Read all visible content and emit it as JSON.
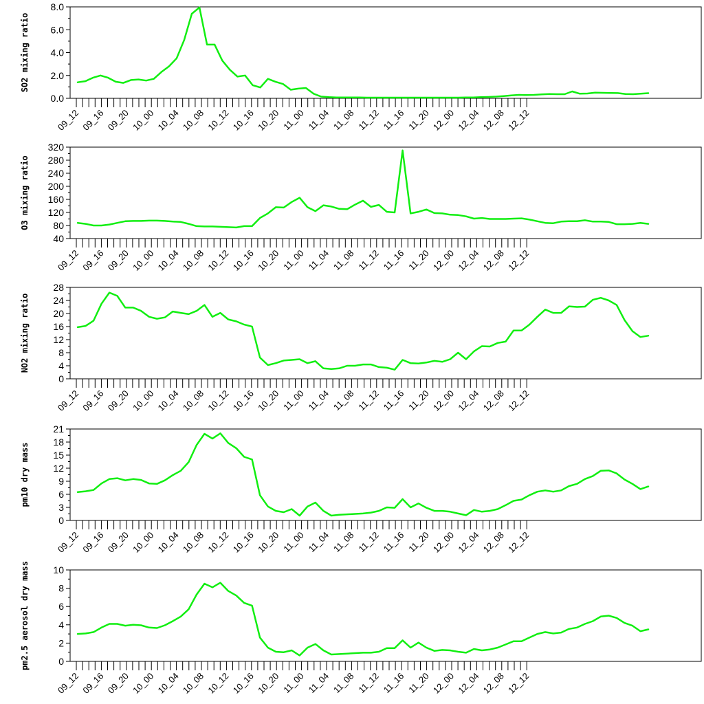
{
  "chart_data": [
    {
      "type": "line",
      "title": "",
      "xlabel": "",
      "ylabel": "SO2 mixing ratio",
      "ylim": [
        0,
        8
      ],
      "yticks": [
        "0.0",
        "2.0",
        "4.0",
        "6.0",
        "8.0"
      ],
      "xtick_labels": [
        "09_12",
        "09_16",
        "09_20",
        "10_00",
        "10_04",
        "10_08",
        "10_12",
        "10_16",
        "10_20",
        "11_00",
        "11_04",
        "11_08",
        "11_12",
        "11_16",
        "11_20",
        "12_00",
        "12_04",
        "12_08",
        "12_12"
      ],
      "line_color": "#11ee11",
      "grid": false,
      "values": [
        1.4,
        1.5,
        1.8,
        2.0,
        1.8,
        1.45,
        1.35,
        1.6,
        1.65,
        1.55,
        1.7,
        2.3,
        2.8,
        3.5,
        5.1,
        7.4,
        7.95,
        4.7,
        4.7,
        3.3,
        2.5,
        1.9,
        2.0,
        1.15,
        0.95,
        1.7,
        1.45,
        1.25,
        0.75,
        0.85,
        0.9,
        0.4,
        0.15,
        0.1,
        0.08,
        0.08,
        0.07,
        0.07,
        0.06,
        0.06,
        0.06,
        0.06,
        0.06,
        0.06,
        0.06,
        0.06,
        0.06,
        0.06,
        0.06,
        0.06,
        0.06,
        0.07,
        0.08,
        0.1,
        0.12,
        0.15,
        0.2,
        0.25,
        0.3,
        0.28,
        0.3,
        0.35,
        0.38,
        0.36,
        0.36,
        0.6,
        0.4,
        0.42,
        0.5,
        0.48,
        0.47,
        0.46,
        0.38,
        0.36,
        0.4,
        0.45
      ]
    },
    {
      "type": "line",
      "title": "",
      "xlabel": "",
      "ylabel": "O3 mixing ratio",
      "ylim": [
        40,
        320
      ],
      "yticks": [
        "40",
        "80",
        "120",
        "160",
        "200",
        "240",
        "280",
        "320"
      ],
      "xtick_labels": [
        "09_12",
        "09_16",
        "09_20",
        "10_00",
        "10_04",
        "10_08",
        "10_12",
        "10_16",
        "10_20",
        "11_00",
        "11_04",
        "11_08",
        "11_12",
        "11_16",
        "11_20",
        "12_00",
        "12_04",
        "12_08",
        "12_12"
      ],
      "line_color": "#11ee11",
      "grid": false,
      "values": [
        88,
        85,
        80,
        80,
        83,
        88,
        93,
        94,
        94,
        95,
        95,
        94,
        92,
        91,
        85,
        78,
        77,
        77,
        76,
        75,
        74,
        78,
        78,
        103,
        117,
        136,
        135,
        152,
        165,
        136,
        124,
        142,
        138,
        131,
        130,
        144,
        156,
        137,
        143,
        122,
        120,
        310,
        117,
        122,
        129,
        118,
        117,
        113,
        112,
        108,
        101,
        103,
        100,
        100,
        100,
        101,
        102,
        98,
        93,
        88,
        87,
        92,
        93,
        93,
        96,
        92,
        92,
        91,
        84,
        84,
        85,
        88,
        85
      ]
    },
    {
      "type": "line",
      "title": "",
      "xlabel": "",
      "ylabel": "NO2 mixing ratio",
      "ylim": [
        0,
        28
      ],
      "yticks": [
        "0",
        "4",
        "8",
        "12",
        "16",
        "20",
        "24",
        "28"
      ],
      "xtick_labels": [
        "09_12",
        "09_16",
        "09_20",
        "10_00",
        "10_04",
        "10_08",
        "10_12",
        "10_16",
        "10_20",
        "11_00",
        "11_04",
        "11_08",
        "11_12",
        "11_16",
        "11_20",
        "12_00",
        "12_04",
        "12_08",
        "12_12"
      ],
      "line_color": "#11ee11",
      "grid": false,
      "values": [
        15.8,
        16.2,
        17.8,
        23.0,
        26.4,
        25.4,
        21.8,
        21.8,
        20.8,
        19.0,
        18.4,
        18.8,
        20.6,
        20.2,
        19.8,
        20.8,
        22.6,
        19.0,
        20.2,
        18.2,
        17.6,
        16.6,
        16.0,
        6.5,
        4.2,
        4.8,
        5.6,
        5.8,
        6.0,
        4.8,
        5.4,
        3.2,
        3.0,
        3.2,
        4.0,
        4.0,
        4.4,
        4.4,
        3.6,
        3.4,
        2.8,
        5.8,
        4.8,
        4.7,
        5.0,
        5.5,
        5.2,
        6.0,
        8.0,
        6.0,
        8.4,
        10.0,
        9.9,
        11.0,
        11.4,
        14.8,
        14.8,
        16.6,
        19.0,
        21.2,
        20.2,
        20.2,
        22.2,
        22.0,
        22.1,
        24.2,
        24.8,
        24.0,
        22.6,
        18.0,
        14.6,
        12.8,
        13.2
      ]
    },
    {
      "type": "line",
      "title": "",
      "xlabel": "",
      "ylabel": "pm10 dry mass",
      "ylim": [
        0,
        21
      ],
      "yticks": [
        "0",
        "3",
        "6",
        "9",
        "12",
        "15",
        "18",
        "21"
      ],
      "xtick_labels": [
        "09_12",
        "09_16",
        "09_20",
        "10_00",
        "10_04",
        "10_08",
        "10_12",
        "10_16",
        "10_20",
        "11_00",
        "11_04",
        "11_08",
        "11_12",
        "11_16",
        "11_20",
        "12_00",
        "12_04",
        "12_08",
        "12_12"
      ],
      "line_color": "#11ee11",
      "grid": false,
      "values": [
        6.5,
        6.7,
        7.0,
        8.5,
        9.5,
        9.7,
        9.2,
        9.5,
        9.3,
        8.5,
        8.4,
        9.2,
        10.4,
        11.4,
        13.4,
        17.3,
        19.9,
        18.8,
        20.0,
        17.8,
        16.6,
        14.6,
        14.0,
        5.8,
        3.2,
        2.2,
        1.9,
        2.6,
        1.1,
        3.2,
        4.1,
        2.2,
        1.1,
        1.3,
        1.4,
        1.5,
        1.6,
        1.8,
        2.2,
        3.0,
        2.9,
        4.9,
        3.0,
        3.9,
        2.9,
        2.2,
        2.2,
        2.0,
        1.6,
        1.2,
        2.4,
        2.0,
        2.2,
        2.6,
        3.5,
        4.5,
        4.8,
        5.8,
        6.6,
        6.9,
        6.6,
        6.9,
        7.9,
        8.4,
        9.5,
        10.2,
        11.4,
        11.5,
        10.8,
        9.4,
        8.4,
        7.2,
        7.8
      ]
    },
    {
      "type": "line",
      "title": "",
      "xlabel": "",
      "ylabel": "pm2.5 aerosol dry mass",
      "ylim": [
        0,
        10
      ],
      "yticks": [
        "0",
        "2",
        "4",
        "6",
        "8",
        "10"
      ],
      "xtick_labels": [
        "09_12",
        "09_16",
        "09_20",
        "10_00",
        "10_04",
        "10_08",
        "10_12",
        "10_16",
        "10_20",
        "11_00",
        "11_04",
        "11_08",
        "11_12",
        "11_16",
        "11_20",
        "12_00",
        "12_04",
        "12_08",
        "12_12"
      ],
      "line_color": "#11ee11",
      "grid": false,
      "values": [
        3.0,
        3.05,
        3.2,
        3.7,
        4.1,
        4.1,
        3.9,
        4.0,
        3.95,
        3.7,
        3.65,
        3.95,
        4.4,
        4.9,
        5.7,
        7.3,
        8.5,
        8.1,
        8.6,
        7.7,
        7.2,
        6.4,
        6.1,
        2.6,
        1.5,
        1.05,
        1.0,
        1.2,
        0.65,
        1.5,
        1.9,
        1.2,
        0.75,
        0.8,
        0.85,
        0.9,
        0.95,
        0.95,
        1.05,
        1.45,
        1.45,
        2.3,
        1.5,
        2.05,
        1.5,
        1.15,
        1.25,
        1.2,
        1.05,
        0.95,
        1.35,
        1.2,
        1.3,
        1.5,
        1.85,
        2.2,
        2.2,
        2.6,
        3.0,
        3.2,
        3.05,
        3.15,
        3.55,
        3.7,
        4.1,
        4.4,
        4.9,
        5.0,
        4.75,
        4.2,
        3.9,
        3.3,
        3.5
      ]
    }
  ]
}
